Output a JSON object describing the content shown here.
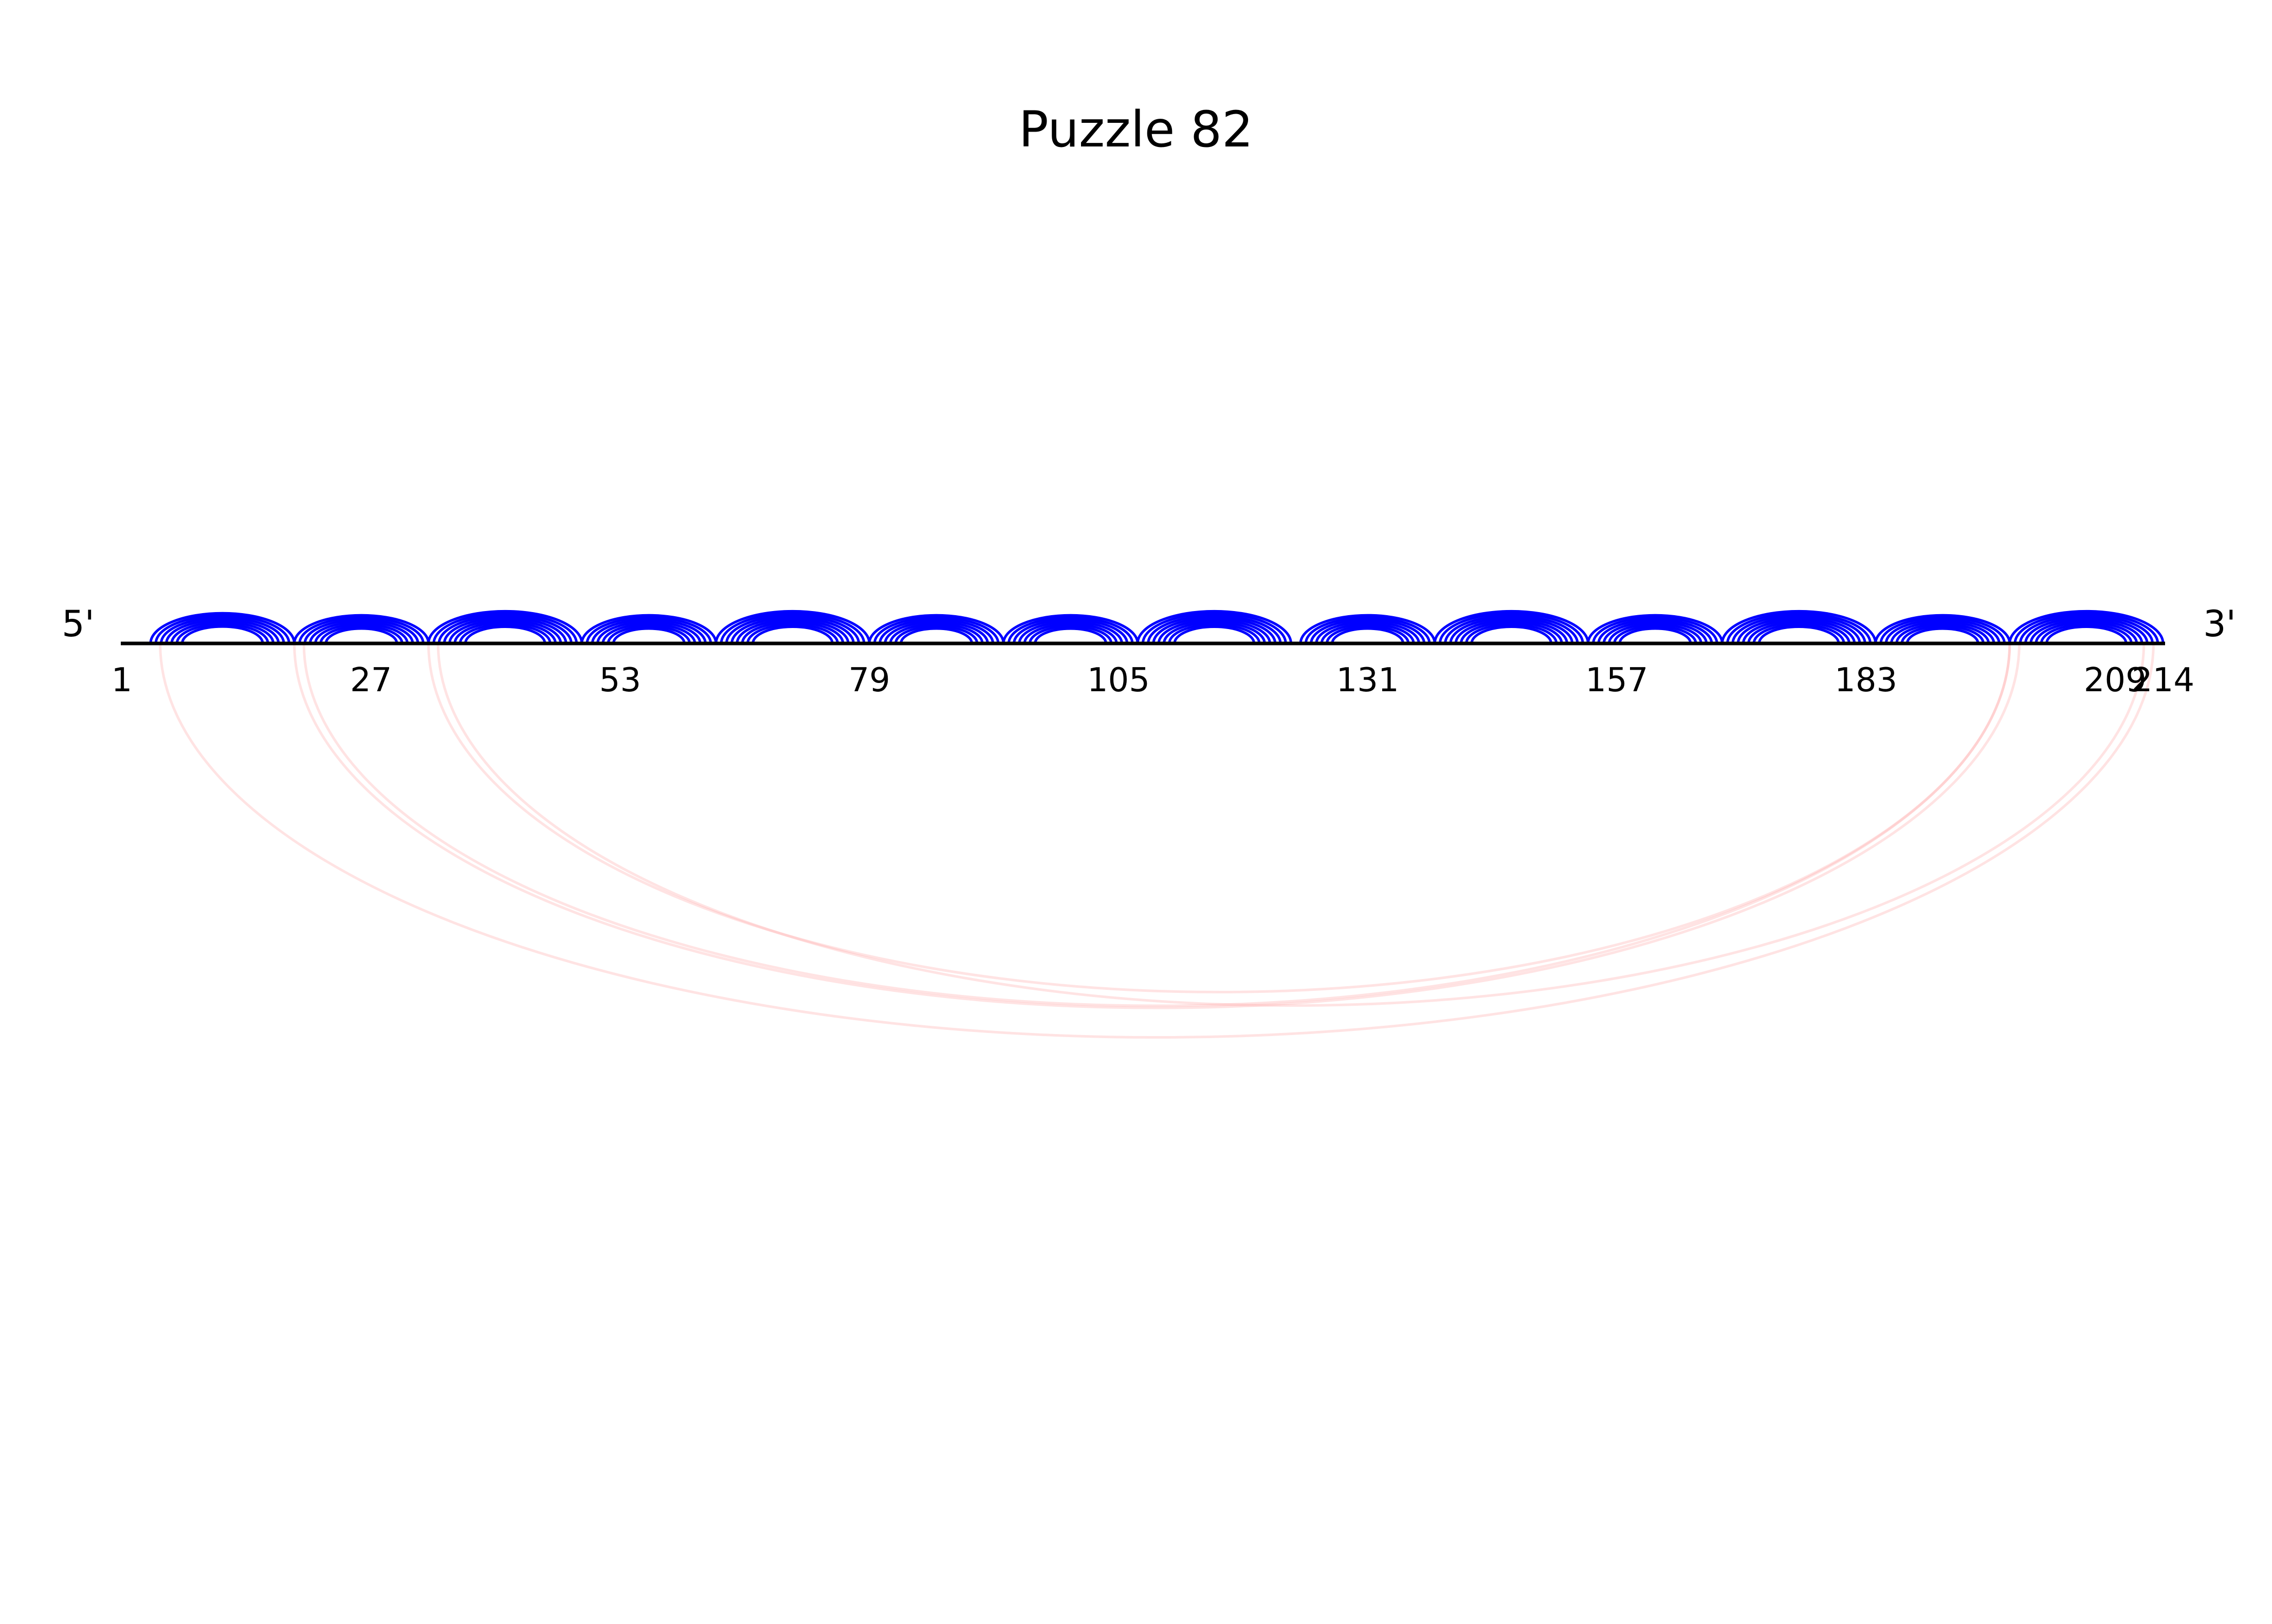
{
  "title": "Puzzle 82",
  "five_prime_label": "5'",
  "three_prime_label": "3'",
  "sequence_length": 214,
  "tick_labels": [
    "1",
    "27",
    "53",
    "79",
    "105",
    "131",
    "157",
    "183",
    "209",
    "214"
  ],
  "colors": {
    "backbone": "#000000",
    "local_pairs": "#0000ff",
    "long_range_pairs": "#ffb0b0",
    "background": "#ffffff"
  },
  "arc_groups": [
    {
      "start": 4,
      "end": 19,
      "count": 7
    },
    {
      "start": 19,
      "end": 33,
      "count": 7
    },
    {
      "start": 33,
      "end": 49,
      "count": 8
    },
    {
      "start": 49,
      "end": 63,
      "count": 7
    },
    {
      "start": 63,
      "end": 79,
      "count": 8
    },
    {
      "start": 79,
      "end": 93,
      "count": 7
    },
    {
      "start": 93,
      "end": 107,
      "count": 7
    },
    {
      "start": 107,
      "end": 123,
      "count": 8
    },
    {
      "start": 124,
      "end": 138,
      "count": 7
    },
    {
      "start": 138,
      "end": 154,
      "count": 8
    },
    {
      "start": 154,
      "end": 168,
      "count": 7
    },
    {
      "start": 168,
      "end": 184,
      "count": 8
    },
    {
      "start": 184,
      "end": 198,
      "count": 7
    },
    {
      "start": 198,
      "end": 214,
      "count": 8
    }
  ],
  "long_range_pairs": [
    {
      "i": 5,
      "j": 213
    },
    {
      "i": 19,
      "j": 199
    },
    {
      "i": 20,
      "j": 198
    },
    {
      "i": 33,
      "j": 198
    },
    {
      "i": 34,
      "j": 212
    }
  ]
}
